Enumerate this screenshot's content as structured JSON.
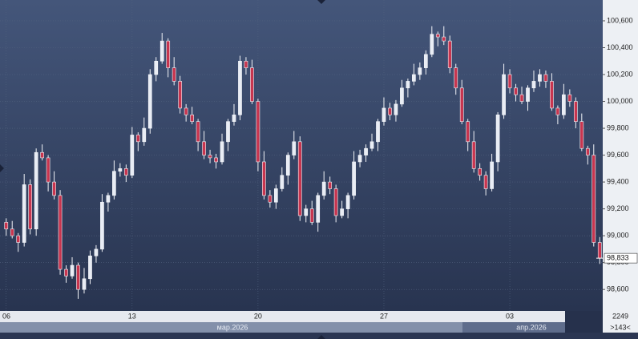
{
  "chart_data": {
    "type": "candlestick",
    "xlim": [
      -0.5,
      99.5
    ],
    "xticks": [
      {
        "value": 0,
        "label": "06"
      },
      {
        "value": 21,
        "label": "13"
      },
      {
        "value": 42,
        "label": "20"
      },
      {
        "value": 63,
        "label": "27"
      },
      {
        "value": 84,
        "label": "03"
      }
    ],
    "months": [
      "мар.2026",
      "апр.2026"
    ],
    "ylim": [
      98440,
      100755
    ],
    "yticks": [
      {
        "value": 98600,
        "label": "98,600"
      },
      {
        "value": 98800,
        "label": "98,800"
      },
      {
        "value": 99000,
        "label": "99,000"
      },
      {
        "value": 99200,
        "label": "99,200"
      },
      {
        "value": 99400,
        "label": "99,400"
      },
      {
        "value": 99600,
        "label": "99,600"
      },
      {
        "value": 99800,
        "label": "99,800"
      },
      {
        "value": 100000,
        "label": "100,000"
      },
      {
        "value": 100200,
        "label": "100,200"
      },
      {
        "value": 100400,
        "label": "100,400"
      },
      {
        "value": 100600,
        "label": "100,600"
      }
    ],
    "grid": true,
    "up_color": "#e9edf5",
    "down_color": "#c8354f",
    "wick_color": "#f2f4f8",
    "last_price": {
      "value": 98833,
      "label": "98,833"
    },
    "corner_top": "2249",
    "corner_bottom": ">143<",
    "open": [
      99100,
      99050,
      99000,
      98950,
      99380,
      99050,
      99620,
      99580,
      99400,
      99300,
      98750,
      98700,
      98780,
      98600,
      98680,
      98850,
      98900,
      99250,
      99300,
      99480,
      99500,
      99450,
      99750,
      99700,
      99800,
      100200,
      100300,
      100450,
      100250,
      100150,
      99950,
      99900,
      99850,
      99700,
      99600,
      99580,
      99550,
      99700,
      99850,
      99900,
      100300,
      100250,
      100000,
      99550,
      99300,
      99250,
      99350,
      99450,
      99600,
      99700,
      99150,
      99200,
      99100,
      99300,
      99400,
      99350,
      99150,
      99200,
      99300,
      99550,
      99600,
      99650,
      99700,
      99850,
      99950,
      99900,
      99980,
      100100,
      100150,
      100200,
      100250,
      100350,
      100500,
      100480,
      100450,
      100250,
      100100,
      99850,
      99700,
      99500,
      99450,
      99350,
      99550,
      99900,
      100200,
      100100,
      100050,
      100000,
      100100,
      100150,
      100200,
      100150,
      99950,
      99900,
      100050,
      100000,
      99850,
      99650,
      99600,
      98950
    ],
    "high": [
      99130,
      99110,
      99020,
      99460,
      99420,
      99650,
      99680,
      99600,
      99480,
      99340,
      98780,
      98840,
      98800,
      98760,
      98890,
      98930,
      99310,
      99320,
      99560,
      99540,
      99530,
      99810,
      99770,
      99880,
      100240,
      100330,
      100510,
      100470,
      100330,
      100190,
      99980,
      99960,
      99870,
      99780,
      99640,
      99610,
      99760,
      99870,
      99980,
      100340,
      100330,
      100310,
      100020,
      99630,
      99340,
      99380,
      99510,
      99620,
      99780,
      99740,
      99230,
      99260,
      99320,
      99480,
      99440,
      99380,
      99260,
      99320,
      99630,
      99640,
      99680,
      99760,
      99870,
      100030,
      99990,
      100010,
      100160,
      100170,
      100280,
      100290,
      100380,
      100560,
      100520,
      100560,
      100490,
      100280,
      100160,
      99870,
      99780,
      99540,
      99480,
      99610,
      99920,
      100280,
      100240,
      100130,
      100110,
      100120,
      100230,
      100240,
      100230,
      100210,
      99970,
      100130,
      100090,
      100030,
      99910,
      99670,
      99680,
      98990
    ],
    "low": [
      99000,
      98980,
      98880,
      98920,
      99010,
      99000,
      99560,
      99330,
      99270,
      98710,
      98650,
      98680,
      98530,
      98570,
      98640,
      98800,
      98880,
      99180,
      99270,
      99440,
      99400,
      99430,
      99630,
      99670,
      99760,
      100150,
      100280,
      100180,
      100120,
      99910,
      99850,
      99830,
      99630,
      99570,
      99540,
      99500,
      99530,
      99630,
      99820,
      99860,
      100200,
      99980,
      99480,
      99270,
      99210,
      99200,
      99330,
      99380,
      99570,
      99110,
      99100,
      99080,
      99030,
      99270,
      99310,
      99100,
      99130,
      99130,
      99270,
      99510,
      99550,
      99630,
      99630,
      99820,
      99860,
      99850,
      99960,
      100030,
      100120,
      100160,
      100200,
      100330,
      100410,
      100420,
      100210,
      100050,
      99830,
      99630,
      99470,
      99410,
      99300,
      99330,
      99480,
      99870,
      100060,
      100000,
      99980,
      99930,
      100070,
      100110,
      100100,
      99930,
      99830,
      99870,
      99960,
      99800,
      99630,
      99530,
      98920,
      98790
    ],
    "close": [
      99050,
      99000,
      98950,
      99380,
      99050,
      99620,
      99580,
      99400,
      99300,
      98750,
      98700,
      98780,
      98600,
      98680,
      98850,
      98900,
      99250,
      99300,
      99480,
      99500,
      99450,
      99750,
      99700,
      99800,
      100200,
      100300,
      100450,
      100250,
      100150,
      99950,
      99900,
      99850,
      99700,
      99600,
      99580,
      99550,
      99700,
      99850,
      99900,
      100300,
      100250,
      100000,
      99550,
      99300,
      99250,
      99350,
      99450,
      99600,
      99700,
      99150,
      99200,
      99100,
      99300,
      99400,
      99350,
      99150,
      99200,
      99300,
      99550,
      99600,
      99650,
      99700,
      99850,
      99950,
      99900,
      99980,
      100100,
      100150,
      100200,
      100250,
      100350,
      100500,
      100480,
      100450,
      100250,
      100100,
      99850,
      99700,
      99500,
      99450,
      99350,
      99550,
      99900,
      100200,
      100100,
      100050,
      100000,
      100100,
      100150,
      100200,
      100150,
      99950,
      99900,
      100050,
      100000,
      99850,
      99650,
      99600,
      98950,
      98833
    ]
  }
}
